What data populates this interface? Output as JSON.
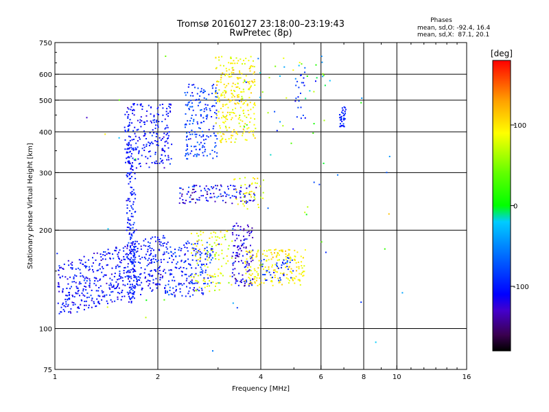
{
  "header": {
    "title_line1": "Tromsø 20160127 23:18:00–23:19:43",
    "title_line2": "RwPretec (8p)",
    "phase_box": {
      "heading": "Phases",
      "line_o": "mean, sd,O: -92.4, 16.4",
      "line_x": "mean, sd,X:  87.1, 20.1"
    }
  },
  "chart_data": {
    "type": "scatter",
    "xlabel": "Frequency [MHz]",
    "ylabel": "Stationary phase Virtual Height [km]",
    "xscale": "log",
    "yscale": "log",
    "xlim": [
      1,
      16
    ],
    "ylim": [
      75,
      750
    ],
    "xticks": [
      1,
      2,
      4,
      6,
      8,
      10,
      16
    ],
    "xtick_labels": [
      "1",
      "2",
      "4",
      "6",
      "8",
      "10",
      "16"
    ],
    "yticks": [
      75,
      100,
      200,
      300,
      400,
      500,
      600,
      750
    ],
    "ytick_labels": [
      "75",
      "100",
      "200",
      "300",
      "400",
      "500",
      "600",
      "750"
    ],
    "xgrid": [
      2,
      4,
      6,
      8,
      10
    ],
    "ygrid": [
      100,
      200,
      300,
      400,
      500,
      600
    ],
    "grid": true,
    "colorbar": {
      "label": "[deg]",
      "range": [
        -180,
        180
      ],
      "ticks": [
        -100,
        0,
        100
      ],
      "tick_labels": [
        "-100",
        "0",
        "100"
      ],
      "stops": [
        {
          "v": -180,
          "color": "#000000"
        },
        {
          "v": -160,
          "color": "#3a0050"
        },
        {
          "v": -130,
          "color": "#4400cc"
        },
        {
          "v": -110,
          "color": "#0000ff"
        },
        {
          "v": -60,
          "color": "#0070ff"
        },
        {
          "v": -20,
          "color": "#00ccff"
        },
        {
          "v": 0,
          "color": "#00ff00"
        },
        {
          "v": 40,
          "color": "#60ff00"
        },
        {
          "v": 90,
          "color": "#ffff00"
        },
        {
          "v": 130,
          "color": "#ffa000"
        },
        {
          "v": 180,
          "color": "#ff0000"
        }
      ]
    },
    "clusters": [
      {
        "name": "o-low-band",
        "fmin": 1.02,
        "fmax": 2.1,
        "hmin": 108,
        "hmax": 195,
        "slope": 0.35,
        "phase": -105,
        "phase_sd": 18,
        "count": 520
      },
      {
        "name": "o-low-band-2",
        "fmin": 2.1,
        "fmax": 2.9,
        "hmin": 125,
        "hmax": 185,
        "phase": -95,
        "phase_sd": 22,
        "count": 200
      },
      {
        "name": "x-low-band",
        "fmin": 2.5,
        "fmax": 3.3,
        "hmin": 130,
        "hmax": 200,
        "phase": 85,
        "phase_sd": 20,
        "count": 110
      },
      {
        "name": "o-low-band-3",
        "fmin": 3.3,
        "fmax": 3.8,
        "hmin": 135,
        "hmax": 210,
        "phase": -120,
        "phase_sd": 22,
        "count": 120
      },
      {
        "name": "x-low-band-2",
        "fmin": 3.6,
        "fmax": 5.4,
        "hmin": 135,
        "hmax": 175,
        "phase": 95,
        "phase_sd": 15,
        "count": 180
      },
      {
        "name": "o-mid-band-3",
        "fmin": 4.0,
        "fmax": 5.0,
        "hmin": 140,
        "hmax": 165,
        "phase": -90,
        "phase_sd": 15,
        "count": 40
      },
      {
        "name": "o-trace-vertical",
        "fmin": 1.62,
        "fmax": 1.72,
        "hmin": 120,
        "hmax": 390,
        "phase": -100,
        "phase_sd": 15,
        "count": 180
      },
      {
        "name": "o-upper",
        "fmin": 1.6,
        "fmax": 2.2,
        "hmin": 310,
        "hmax": 490,
        "phase": -105,
        "phase_sd": 15,
        "count": 220
      },
      {
        "name": "o-upper-2",
        "fmin": 2.4,
        "fmax": 3.0,
        "hmin": 330,
        "hmax": 560,
        "phase": -85,
        "phase_sd": 22,
        "count": 180
      },
      {
        "name": "x-upper",
        "fmin": 2.95,
        "fmax": 3.85,
        "hmin": 370,
        "hmax": 680,
        "phase": 95,
        "phase_sd": 18,
        "count": 260
      },
      {
        "name": "mid-echo",
        "fmin": 2.3,
        "fmax": 3.9,
        "hmin": 240,
        "hmax": 275,
        "phase": -110,
        "phase_sd": 30,
        "count": 120
      },
      {
        "name": "mid-echo-x",
        "fmin": 3.3,
        "fmax": 4.1,
        "hmin": 230,
        "hmax": 290,
        "phase": 90,
        "phase_sd": 20,
        "count": 40
      },
      {
        "name": "far-cluster",
        "fmin": 6.8,
        "fmax": 7.1,
        "hmin": 410,
        "hmax": 480,
        "phase": -95,
        "phase_sd": 15,
        "count": 40
      },
      {
        "name": "far-cluster-2",
        "fmin": 5.0,
        "fmax": 5.4,
        "hmin": 440,
        "hmax": 640,
        "phase": -90,
        "phase_sd": 20,
        "count": 20
      },
      {
        "name": "sparse-high",
        "fmin": 3.4,
        "fmax": 6.5,
        "hmin": 400,
        "hmax": 700,
        "phase": 0,
        "phase_sd": 110,
        "count": 45
      },
      {
        "name": "sparse-low",
        "fmin": 1.0,
        "fmax": 10.5,
        "hmin": 80,
        "hmax": 700,
        "phase": 0,
        "phase_sd": 110,
        "count": 50
      }
    ]
  }
}
